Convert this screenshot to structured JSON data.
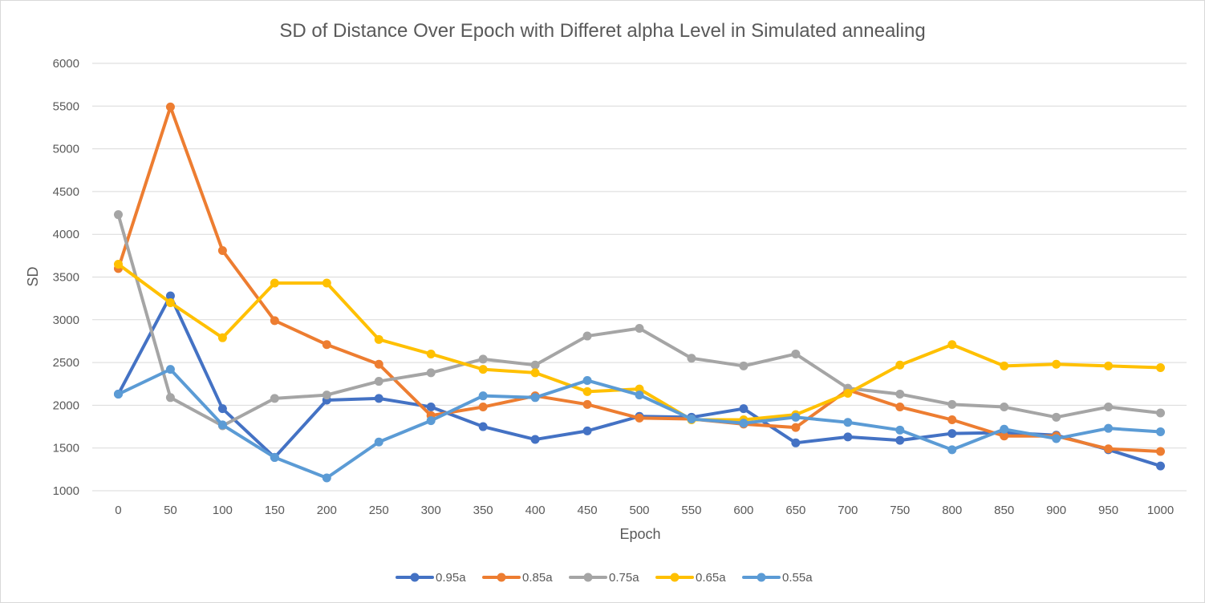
{
  "chart_data": {
    "type": "line",
    "title": "SD of Distance Over Epoch with Differet alpha Level in Simulated annealing",
    "xlabel": "Epoch",
    "ylabel": "SD",
    "ylim": [
      1000,
      6000
    ],
    "y_ticks": [
      1000,
      1500,
      2000,
      2500,
      3000,
      3500,
      4000,
      4500,
      5000,
      5500,
      6000
    ],
    "categories": [
      "0",
      "50",
      "100",
      "150",
      "200",
      "250",
      "300",
      "350",
      "400",
      "450",
      "500",
      "550",
      "600",
      "650",
      "700",
      "750",
      "800",
      "850",
      "900",
      "950",
      "1000"
    ],
    "grid": "horizontal",
    "legend_position": "bottom",
    "markers": "circle",
    "series": [
      {
        "name": "0.95a",
        "color": "#4472C4",
        "values": [
          2130,
          3280,
          1960,
          1390,
          2060,
          2080,
          1980,
          1750,
          1600,
          1700,
          1870,
          1860,
          1960,
          1560,
          1630,
          1590,
          1670,
          1680,
          1650,
          1480,
          1290
        ]
      },
      {
        "name": "0.85a",
        "color": "#ED7D31",
        "values": [
          3600,
          5490,
          3810,
          2990,
          2710,
          2480,
          1880,
          1980,
          2110,
          2010,
          1850,
          1840,
          1780,
          1740,
          2180,
          1980,
          1830,
          1640,
          1640,
          1490,
          1460
        ]
      },
      {
        "name": "0.75a",
        "color": "#A5A5A5",
        "values": [
          4230,
          2090,
          1760,
          2080,
          2120,
          2280,
          2380,
          2540,
          2470,
          2810,
          2900,
          2550,
          2460,
          2600,
          2200,
          2130,
          2010,
          1980,
          1860,
          1980,
          1910
        ]
      },
      {
        "name": "0.65a",
        "color": "#FFC000",
        "values": [
          3650,
          3200,
          2790,
          3430,
          3430,
          2770,
          2600,
          2420,
          2380,
          2160,
          2190,
          1830,
          1830,
          1890,
          2140,
          2470,
          2710,
          2460,
          2480,
          2460,
          2440
        ]
      },
      {
        "name": "0.55a",
        "color": "#5B9BD5",
        "values": [
          2130,
          2420,
          1770,
          1390,
          1150,
          1570,
          1820,
          2110,
          2090,
          2290,
          2120,
          1840,
          1790,
          1860,
          1800,
          1710,
          1480,
          1720,
          1610,
          1730,
          1690
        ]
      }
    ]
  }
}
